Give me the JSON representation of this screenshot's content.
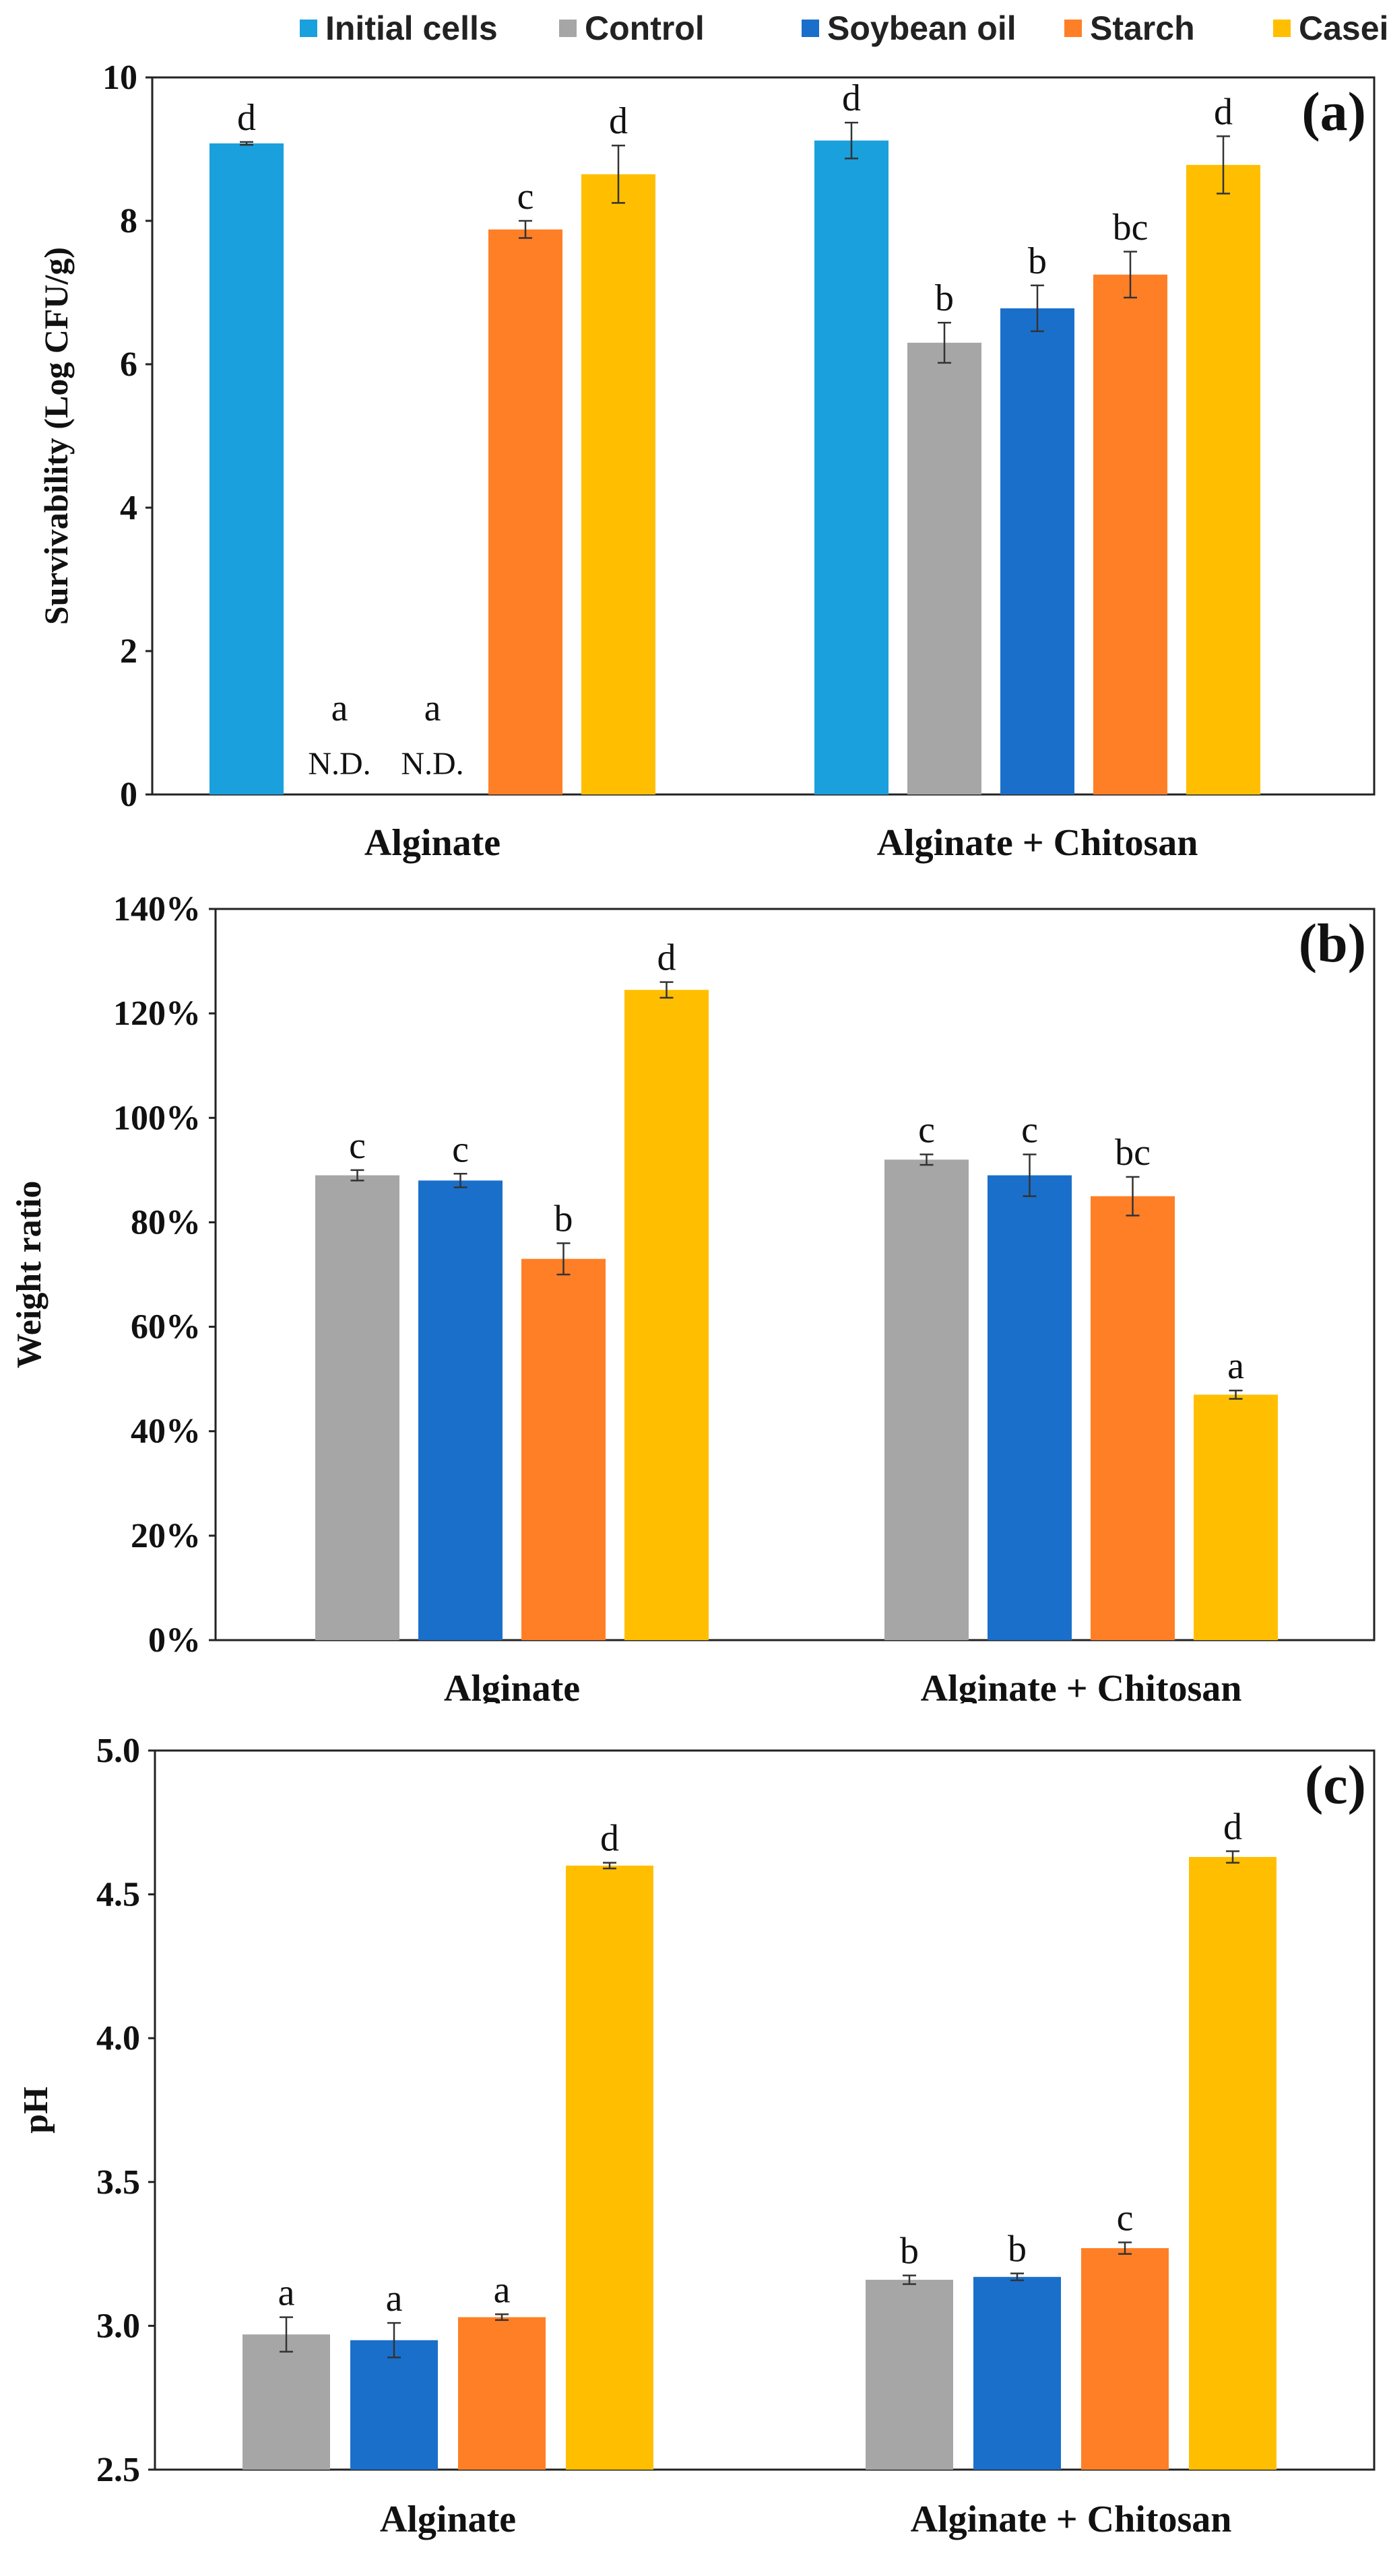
{
  "legend": {
    "items": [
      {
        "label": "Initial cells",
        "color": "#1aa0dc"
      },
      {
        "label": "Control",
        "color": "#a6a6a6"
      },
      {
        "label": "Soybean oil",
        "color": "#1a6fcb"
      },
      {
        "label": "Starch",
        "color": "#ff7f27"
      },
      {
        "label": "Casein",
        "color": "#ffbf00"
      }
    ]
  },
  "chart_data": [
    {
      "type": "bar",
      "panel_label": "(a)",
      "ylabel": "Survivability (Log CFU/g)",
      "ylim": [
        0,
        10
      ],
      "yticks": [
        "0",
        "2",
        "4",
        "6",
        "8",
        "10"
      ],
      "ytick_values": [
        0,
        2,
        4,
        6,
        8,
        10
      ],
      "categories": [
        "Alginate",
        "Alginate + Chitosan"
      ],
      "series": [
        {
          "name": "Initial cells",
          "values": [
            9.08,
            9.12
          ],
          "errors": [
            0.02,
            0.25
          ],
          "letters": [
            "d",
            "d"
          ],
          "notes": [
            "",
            ""
          ]
        },
        {
          "name": "Control",
          "values": [
            0,
            6.3
          ],
          "errors": [
            0,
            0.28
          ],
          "letters": [
            "a",
            "b"
          ],
          "notes": [
            "N.D.",
            ""
          ]
        },
        {
          "name": "Soybean oil",
          "values": [
            0,
            6.78
          ],
          "errors": [
            0,
            0.32
          ],
          "letters": [
            "a",
            "b"
          ],
          "notes": [
            "N.D.",
            ""
          ]
        },
        {
          "name": "Starch",
          "values": [
            7.88,
            7.25
          ],
          "errors": [
            0.12,
            0.32
          ],
          "letters": [
            "c",
            "bc"
          ],
          "notes": [
            "",
            ""
          ]
        },
        {
          "name": "Casein",
          "values": [
            8.65,
            8.78
          ],
          "errors": [
            0.4,
            0.4
          ],
          "letters": [
            "d",
            "d"
          ],
          "notes": [
            "",
            ""
          ]
        }
      ]
    },
    {
      "type": "bar",
      "panel_label": "(b)",
      "ylabel": "Weight ratio",
      "ylim": [
        0,
        140
      ],
      "yticks": [
        "0%",
        "20%",
        "40%",
        "60%",
        "80%",
        "100%",
        "120%",
        "140%"
      ],
      "ytick_values": [
        0,
        20,
        40,
        60,
        80,
        100,
        120,
        140
      ],
      "categories": [
        "Alginate",
        "Alginate + Chitosan"
      ],
      "series": [
        {
          "name": "Control",
          "values": [
            89,
            92
          ],
          "errors": [
            1,
            1
          ],
          "letters": [
            "c",
            "c"
          ],
          "notes": [
            "",
            ""
          ]
        },
        {
          "name": "Soybean oil",
          "values": [
            88,
            89
          ],
          "errors": [
            1.3,
            4
          ],
          "letters": [
            "c",
            "c"
          ],
          "notes": [
            "",
            ""
          ]
        },
        {
          "name": "Starch",
          "values": [
            73,
            85
          ],
          "errors": [
            3,
            3.7
          ],
          "letters": [
            "b",
            "bc"
          ],
          "notes": [
            "",
            ""
          ]
        },
        {
          "name": "Casein",
          "values": [
            124.5,
            47
          ],
          "errors": [
            1.5,
            0.8
          ],
          "letters": [
            "d",
            "a"
          ],
          "notes": [
            "",
            ""
          ]
        }
      ]
    },
    {
      "type": "bar",
      "panel_label": "(c)",
      "ylabel": "pH",
      "ylim": [
        2.5,
        5.0
      ],
      "yticks": [
        "2.5",
        "3.0",
        "3.5",
        "4.0",
        "4.5",
        "5.0"
      ],
      "ytick_values": [
        2.5,
        3.0,
        3.5,
        4.0,
        4.5,
        5.0
      ],
      "categories": [
        "Alginate",
        "Alginate + Chitosan"
      ],
      "series": [
        {
          "name": "Control",
          "values": [
            2.97,
            3.16
          ],
          "errors": [
            0.06,
            0.015
          ],
          "letters": [
            "a",
            "b"
          ],
          "notes": [
            "",
            ""
          ]
        },
        {
          "name": "Soybean oil",
          "values": [
            2.95,
            3.17
          ],
          "errors": [
            0.06,
            0.012
          ],
          "letters": [
            "a",
            "b"
          ],
          "notes": [
            "",
            ""
          ]
        },
        {
          "name": "Starch",
          "values": [
            3.03,
            3.27
          ],
          "errors": [
            0.01,
            0.02
          ],
          "letters": [
            "a",
            "c"
          ],
          "notes": [
            "",
            ""
          ]
        },
        {
          "name": "Casein",
          "values": [
            4.6,
            4.63
          ],
          "errors": [
            0.01,
            0.02
          ],
          "letters": [
            "d",
            "d"
          ],
          "notes": [
            "",
            ""
          ]
        }
      ]
    }
  ]
}
